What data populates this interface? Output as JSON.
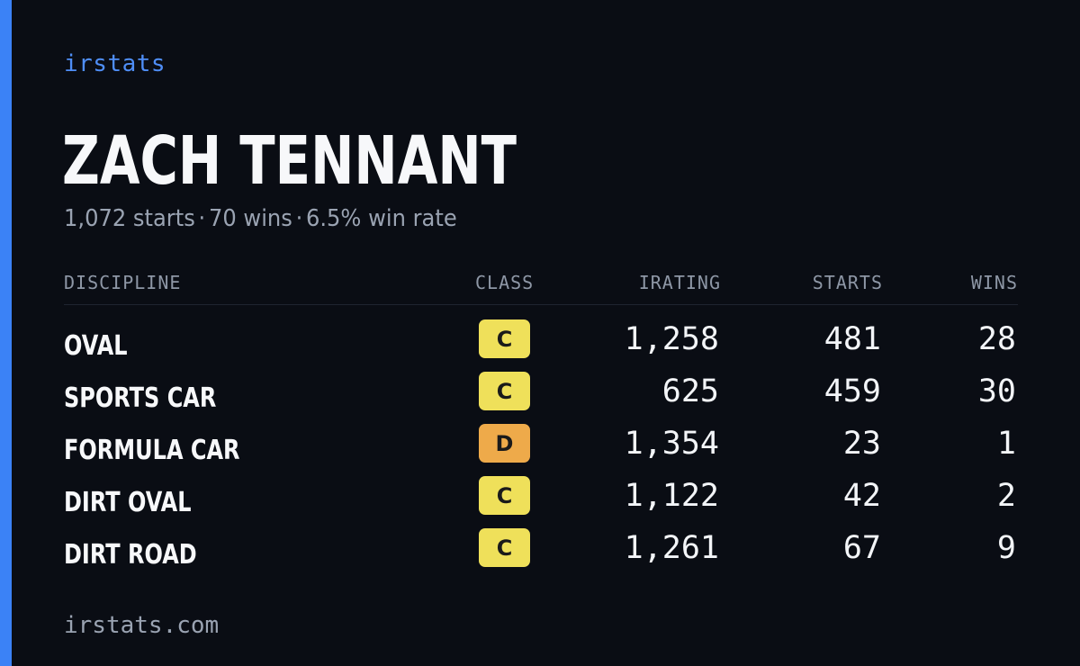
{
  "brand": "irstats",
  "player": {
    "name": "ZACH TENNANT",
    "starts_text": "1,072 starts",
    "wins_text": "70 wins",
    "win_rate_text": "6.5% win rate",
    "separator": "·"
  },
  "table": {
    "headers": {
      "discipline": "DISCIPLINE",
      "class": "CLASS",
      "irating": "IRATING",
      "starts": "STARTS",
      "wins": "WINS"
    },
    "rows": [
      {
        "discipline": "OVAL",
        "class": "C",
        "class_color": "#efe05a",
        "irating": "1,258",
        "starts": "481",
        "wins": "28"
      },
      {
        "discipline": "SPORTS CAR",
        "class": "C",
        "class_color": "#efe05a",
        "irating": "625",
        "starts": "459",
        "wins": "30"
      },
      {
        "discipline": "FORMULA CAR",
        "class": "D",
        "class_color": "#eeaa4a",
        "irating": "1,354",
        "starts": "23",
        "wins": "1"
      },
      {
        "discipline": "DIRT OVAL",
        "class": "C",
        "class_color": "#efe05a",
        "irating": "1,122",
        "starts": "42",
        "wins": "2"
      },
      {
        "discipline": "DIRT ROAD",
        "class": "C",
        "class_color": "#efe05a",
        "irating": "1,261",
        "starts": "67",
        "wins": "9"
      }
    ]
  },
  "footer": "irstats.com",
  "colors": {
    "background": "#0a0d14",
    "accent": "#3b82f6",
    "brand_text": "#4f8ef7",
    "muted_text": "#9aa3b2"
  }
}
